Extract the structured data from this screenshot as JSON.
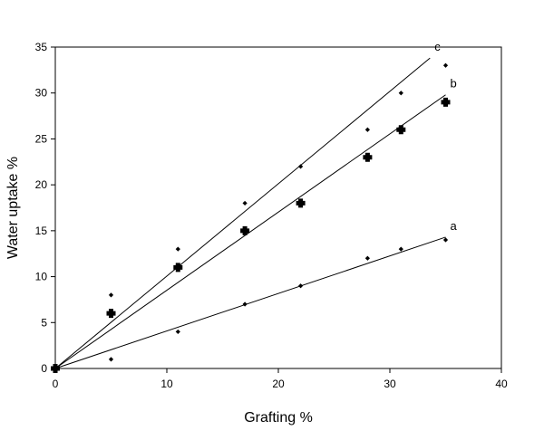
{
  "chart_data": {
    "type": "scatter",
    "title": "",
    "xlabel": "Grafting %",
    "ylabel": "Water uptake %",
    "xlim": [
      0,
      40
    ],
    "ylim": [
      0,
      35
    ],
    "xticks": [
      0,
      10,
      20,
      30,
      40
    ],
    "yticks": [
      0,
      5,
      10,
      15,
      20,
      25,
      30,
      35
    ],
    "grid": false,
    "series": [
      {
        "label": "a",
        "marker": "small-diamond",
        "points": [
          {
            "x": 0,
            "y": 0
          },
          {
            "x": 5,
            "y": 1
          },
          {
            "x": 11,
            "y": 4
          },
          {
            "x": 17,
            "y": 7
          },
          {
            "x": 22,
            "y": 9
          },
          {
            "x": 28,
            "y": 12
          },
          {
            "x": 31,
            "y": 13
          },
          {
            "x": 35,
            "y": 14
          }
        ],
        "fit_line": {
          "x_start": 0,
          "y_start": 0,
          "x_end": 35,
          "y_end": 14.3
        }
      },
      {
        "label": "b",
        "marker": "large-filled-cross",
        "points": [
          {
            "x": 0,
            "y": 0
          },
          {
            "x": 5,
            "y": 6
          },
          {
            "x": 11,
            "y": 11
          },
          {
            "x": 17,
            "y": 15
          },
          {
            "x": 22,
            "y": 18
          },
          {
            "x": 28,
            "y": 23
          },
          {
            "x": 31,
            "y": 26
          },
          {
            "x": 35,
            "y": 29
          }
        ],
        "fit_line": {
          "x_start": 0,
          "y_start": 0,
          "x_end": 35,
          "y_end": 29.8
        }
      },
      {
        "label": "c",
        "marker": "small-diamond",
        "points": [
          {
            "x": 0,
            "y": 0
          },
          {
            "x": 5,
            "y": 8
          },
          {
            "x": 11,
            "y": 13
          },
          {
            "x": 17,
            "y": 18
          },
          {
            "x": 22,
            "y": 22
          },
          {
            "x": 28,
            "y": 26
          },
          {
            "x": 31,
            "y": 30
          },
          {
            "x": 35,
            "y": 33
          }
        ],
        "fit_line": {
          "x_start": 0,
          "y_start": 0,
          "x_end": 33.6,
          "y_end": 33.8
        }
      }
    ]
  }
}
